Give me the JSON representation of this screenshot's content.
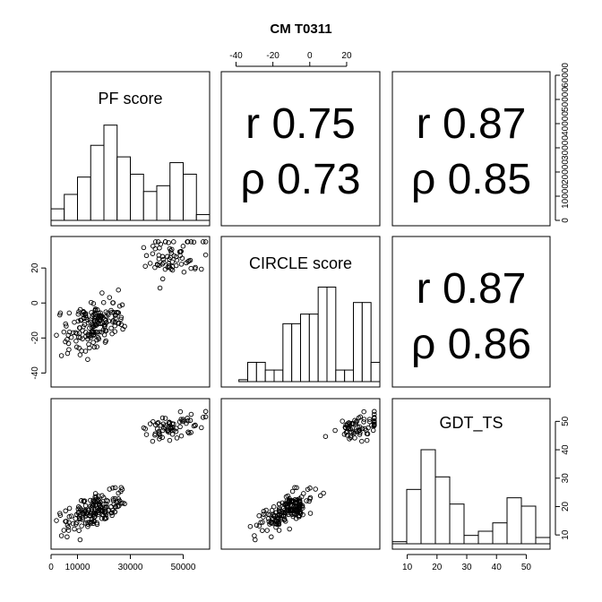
{
  "chart_data": {
    "type": "scatter",
    "title": "CM T0311",
    "variables": [
      {
        "name": "PF score",
        "range": [
          0,
          60000
        ],
        "ticks": [
          0,
          10000,
          30000,
          50000
        ],
        "tick_labels": [
          "0",
          "10000",
          "30000",
          "50000"
        ],
        "right_ticks": [
          0,
          10000,
          20000,
          30000,
          40000,
          50000,
          60000
        ],
        "right_tick_labels": [
          "0",
          "10000",
          "20000",
          "30000",
          "40000",
          "50000",
          "60000"
        ]
      },
      {
        "name": "CIRCLE score",
        "range": [
          -48,
          38
        ],
        "ticks": [
          -40,
          -20,
          0,
          20
        ],
        "tick_labels": [
          "-40",
          "-20",
          "0",
          "20"
        ]
      },
      {
        "name": "GDT_TS",
        "range": [
          5,
          58
        ],
        "ticks": [
          10,
          20,
          30,
          40,
          50
        ],
        "tick_labels": [
          "10",
          "20",
          "30",
          "40",
          "50"
        ]
      }
    ],
    "correlations": [
      {
        "pair": [
          "PF score",
          "CIRCLE score"
        ],
        "r": "r 0.75",
        "rho": "ρ 0.73"
      },
      {
        "pair": [
          "PF score",
          "GDT_TS"
        ],
        "r": "r 0.87",
        "rho": "ρ 0.85"
      },
      {
        "pair": [
          "CIRCLE score",
          "GDT_TS"
        ],
        "r": "r 0.87",
        "rho": "ρ 0.86"
      }
    ],
    "histograms": [
      {
        "variable": "PF score",
        "breaks": [
          0,
          5000,
          10000,
          15000,
          20000,
          25000,
          30000,
          35000,
          40000,
          45000,
          50000,
          55000,
          60000
        ],
        "counts": [
          4,
          9,
          15,
          26,
          33,
          22,
          16,
          10,
          12,
          20,
          16,
          2
        ]
      },
      {
        "variable": "CIRCLE score",
        "breaks": [
          -50,
          -45,
          -40,
          -35,
          -30,
          -25,
          -20,
          -15,
          -10,
          -5,
          0,
          5,
          10,
          15,
          20,
          25,
          30,
          35,
          40
        ],
        "counts": [
          0,
          0,
          1,
          10,
          10,
          6,
          6,
          30,
          30,
          35,
          35,
          49,
          49,
          6,
          6,
          41,
          41,
          10
        ]
      },
      {
        "variable": "GDT_TS",
        "breaks": [
          5,
          10,
          15,
          20,
          25,
          30,
          35,
          40,
          45,
          50,
          55,
          60
        ],
        "counts": [
          1,
          26,
          45,
          32,
          19,
          4,
          6,
          10,
          22,
          18,
          3
        ]
      }
    ],
    "grid": false,
    "legend": "none"
  }
}
